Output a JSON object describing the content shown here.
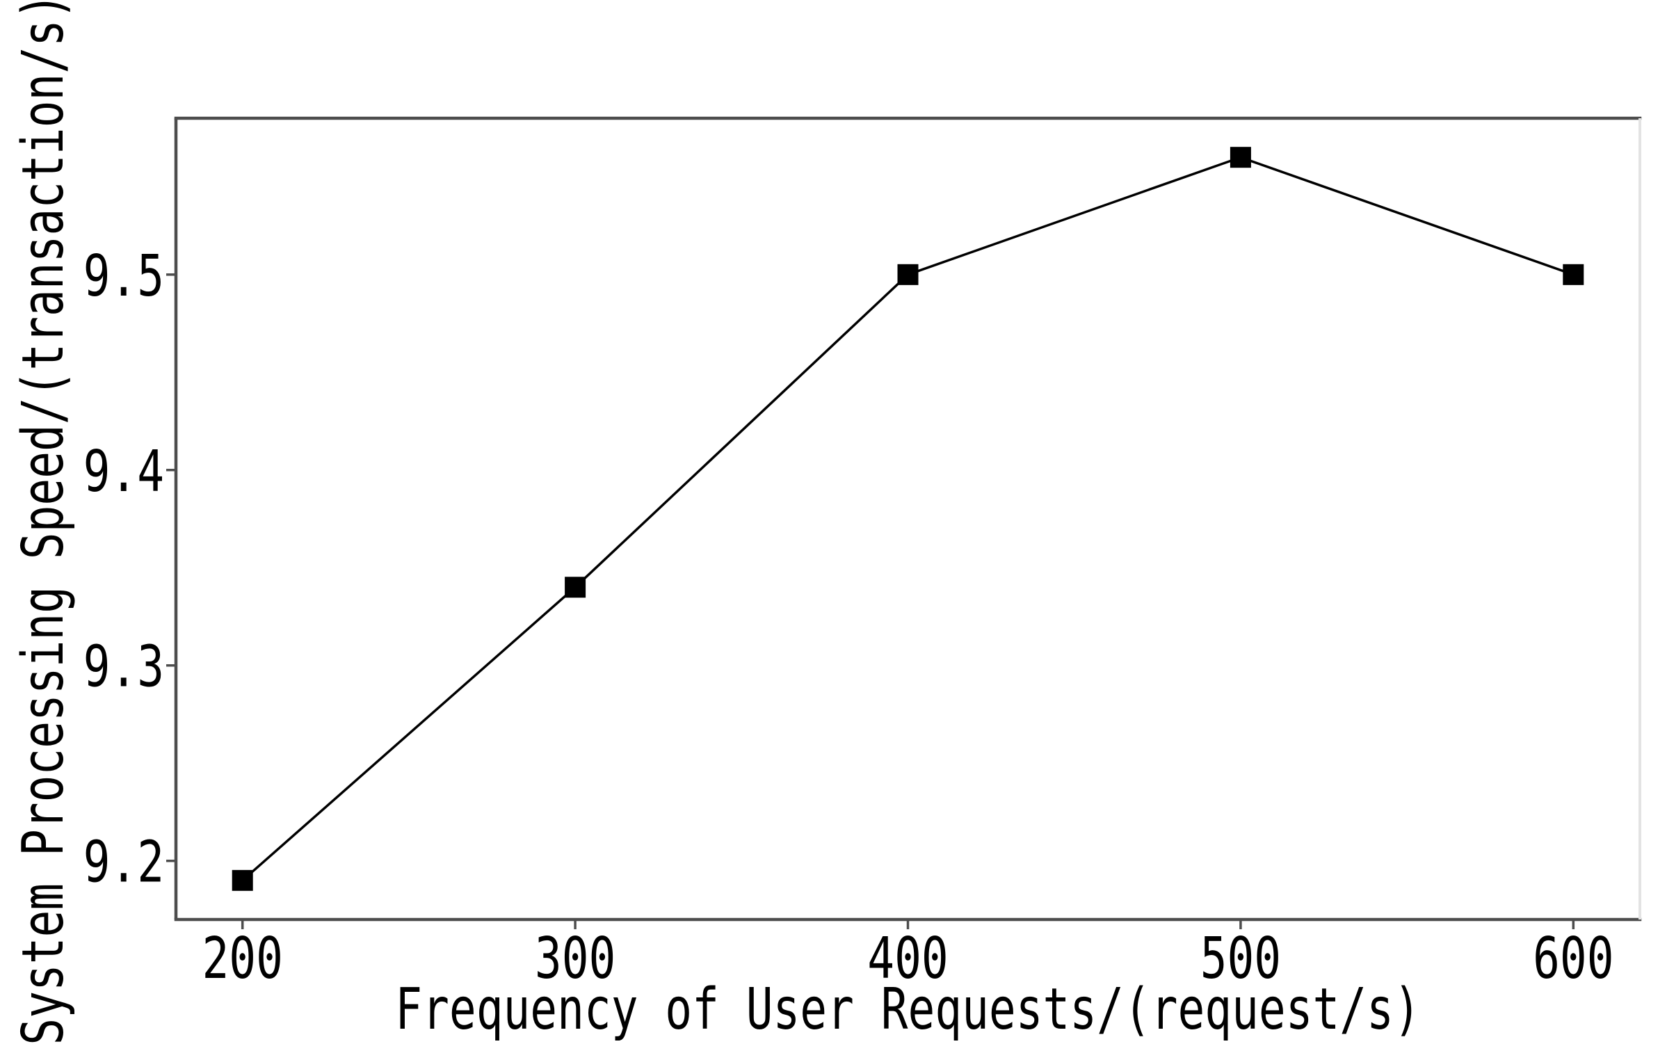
{
  "chart_data": {
    "type": "line",
    "title": "",
    "xlabel": "Frequency of User Requests/(request/s)",
    "ylabel": "System Processing Speed/(transaction/s)",
    "x": [
      200,
      300,
      400,
      500,
      600
    ],
    "series": [
      {
        "name": "System Processing Speed",
        "values": [
          9.19,
          9.34,
          9.5,
          9.56,
          9.5
        ]
      }
    ],
    "xticks": [
      200,
      300,
      400,
      500,
      600
    ],
    "xtick_labels": [
      "200",
      "300",
      "400",
      "500",
      "600"
    ],
    "yticks": [
      9.2,
      9.3,
      9.4,
      9.5
    ],
    "ytick_labels": [
      "9.2",
      "9.3",
      "9.4",
      "9.5"
    ],
    "xlim": [
      180,
      620
    ],
    "ylim": [
      9.17,
      9.58
    ],
    "grid": false,
    "legend_position": "none",
    "marker": "square",
    "colors": {
      "line": "#000000",
      "marker": "#000000",
      "spine": "#4d4d4d",
      "spine_right": "#e3e3e3",
      "tick": "#4d4d4d",
      "background": "#ffffff"
    }
  }
}
